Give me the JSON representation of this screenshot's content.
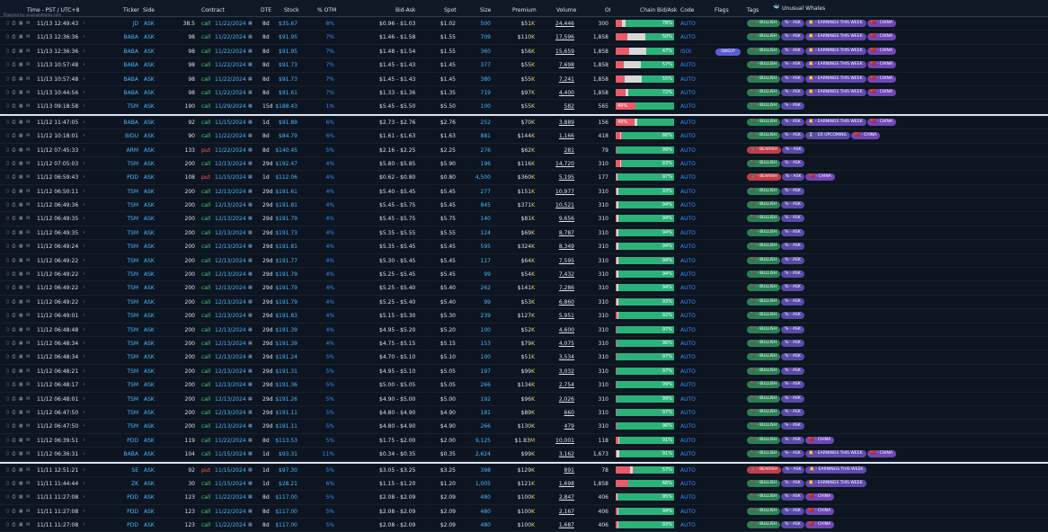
{
  "header": {
    "time": "Time - PST / UTC+8",
    "ticker": "Ticker",
    "side": "Side",
    "contract": "Contract",
    "dte": "DTE",
    "stock": "Stock",
    "otm": "% OTM",
    "bid_ask": "Bid-Ask",
    "spot": "Spot",
    "size": "Size",
    "premium": "Premium",
    "volume": "Volume",
    "oi": "OI",
    "chain": "Chain Bid/Ask",
    "code": "Code",
    "flags": "Flags",
    "tags": "Tags",
    "whales": "Unusual Whales",
    "brand": "Powered by unusualwhales.com"
  },
  "colors": {
    "bg": "#0d1520",
    "ticker": "#49b8ff",
    "call": "#3fd07f",
    "put": "#ff5a5a",
    "bid": "#e85b6a",
    "ask": "#2ab27b"
  },
  "rows": [
    {
      "time": "11/13 12:49:43",
      "ticker": "JD",
      "side": "ASK",
      "strike": "38.5",
      "type": "call",
      "exp": "11/22/2024",
      "dte": "8d",
      "stock": "$35.67",
      "otm": "8%",
      "bidask": "$0.96 - $1.03",
      "spot": "$1.02",
      "size": "500",
      "prem": "$51K",
      "vol": "24,446",
      "oi": "300",
      "bid": 11,
      "mid": 6,
      "pct": "78%",
      "code": "AUTO",
      "tags": [
        "bull",
        "ask",
        "earn",
        "china"
      ]
    },
    {
      "time": "11/13 12:36:36",
      "ticker": "BABA",
      "side": "ASK",
      "strike": "98",
      "type": "call",
      "exp": "11/22/2024",
      "dte": "8d",
      "stock": "$91.95",
      "otm": "7%",
      "bidask": "$1.46 - $1.58",
      "spot": "$1.55",
      "size": "709",
      "prem": "$110K",
      "vol": "17,596",
      "oi": "1,858",
      "bid": 20,
      "mid": 30,
      "pct": "50%",
      "code": "AUTO",
      "tags": [
        "bull",
        "ask",
        "earn",
        "china"
      ]
    },
    {
      "time": "11/13 12:36:36",
      "ticker": "BABA",
      "side": "ASK",
      "strike": "98",
      "type": "call",
      "exp": "11/22/2024",
      "dte": "8d",
      "stock": "$91.95",
      "otm": "7%",
      "bidask": "$1.48 - $1.54",
      "spot": "$1.55",
      "size": "360",
      "prem": "$56K",
      "vol": "15,659",
      "oi": "1,858",
      "bid": 23,
      "mid": 30,
      "pct": "47%",
      "code": "ISOI",
      "flag": "SWEEP",
      "tags": [
        "bull",
        "ask",
        "earn",
        "china"
      ]
    },
    {
      "time": "11/13 10:57:48",
      "ticker": "BABA",
      "side": "ASK",
      "strike": "98",
      "type": "call",
      "exp": "11/22/2024",
      "dte": "8d",
      "stock": "$91.73",
      "otm": "7%",
      "bidask": "$1.45 - $1.43",
      "spot": "$1.45",
      "size": "377",
      "prem": "$55K",
      "vol": "7,698",
      "oi": "1,858",
      "bid": 14,
      "mid": 29,
      "pct": "57%",
      "code": "AUTO",
      "tags": [
        "bull",
        "ask",
        "earn",
        "china"
      ]
    },
    {
      "time": "11/13 10:57:48",
      "ticker": "BABA",
      "side": "ASK",
      "strike": "98",
      "type": "call",
      "exp": "11/22/2024",
      "dte": "8d",
      "stock": "$91.73",
      "otm": "7%",
      "bidask": "$1.45 - $1.43",
      "spot": "$1.45",
      "size": "380",
      "prem": "$55K",
      "vol": "7,241",
      "oi": "1,858",
      "bid": 15,
      "mid": 29,
      "pct": "55%",
      "code": "AUTO",
      "tags": [
        "bull",
        "ask",
        "earn",
        "china"
      ]
    },
    {
      "time": "11/13 10:44:56",
      "ticker": "BABA",
      "side": "ASK",
      "strike": "98",
      "type": "call",
      "exp": "11/22/2024",
      "dte": "8d",
      "stock": "$91.61",
      "otm": "7%",
      "bidask": "$1.33 - $1.36",
      "spot": "$1.35",
      "size": "719",
      "prem": "$97K",
      "vol": "4,400",
      "oi": "1,858",
      "bid": 17,
      "mid": 4,
      "pct": "72%",
      "code": "AUTO",
      "tags": [
        "bull",
        "ask",
        "earn",
        "china"
      ]
    },
    {
      "time": "11/13 09:18:58",
      "ticker": "TSM",
      "side": "ASK",
      "strike": "190",
      "type": "call",
      "exp": "11/29/2024",
      "dte": "15d",
      "stock": "$188.43",
      "otm": "1%",
      "bidask": "$5.45 - $5.50",
      "spot": "$5.50",
      "size": "100",
      "prem": "$55K",
      "vol": "582",
      "oi": "565",
      "bid": 34,
      "mid": 0,
      "pct": "49%",
      "pctLeft": true,
      "code": "AUTO",
      "tags": [
        "bull",
        "ask"
      ]
    },
    {
      "time": "11/12 11:47:05",
      "ticker": "BABA",
      "side": "ASK",
      "strike": "92",
      "type": "call",
      "exp": "11/15/2024",
      "dte": "1d",
      "stock": "$91.89",
      "otm": "6%",
      "bidask": "$2.73 - $2.76",
      "spot": "$2.76",
      "size": "252",
      "prem": "$70K",
      "vol": "3,889",
      "oi": "156",
      "bid": 32,
      "mid": 5,
      "pct": "49%",
      "pctLeft": true,
      "code": "AUTO",
      "sep": true,
      "tags": [
        "bull",
        "ask",
        "earn",
        "china"
      ]
    },
    {
      "time": "11/12 10:18:01",
      "ticker": "BIDU",
      "side": "ASK",
      "strike": "90",
      "type": "call",
      "exp": "11/22/2024",
      "dte": "8d",
      "stock": "$84.79",
      "otm": "6%",
      "bidask": "$1.61 - $1.63",
      "spot": "$1.63",
      "size": "881",
      "prem": "$144K",
      "vol": "1,166",
      "oi": "418",
      "bid": 7,
      "mid": 3,
      "pct": "86%",
      "code": "AUTO",
      "tags": [
        "bull",
        "ask",
        "er",
        "china"
      ]
    },
    {
      "time": "11/12 07:45:33",
      "ticker": "ARM",
      "side": "ASK",
      "strike": "133",
      "type": "put",
      "exp": "11/22/2024",
      "dte": "8d",
      "stock": "$140.45",
      "otm": "5%",
      "bidask": "$2.16 - $2.25",
      "spot": "$2.25",
      "size": "276",
      "prem": "$62K",
      "vol": "281",
      "oi": "79",
      "bid": 1,
      "mid": 0,
      "pct": "99%",
      "code": "AUTO",
      "tags": [
        "bear",
        "ask"
      ]
    },
    {
      "time": "11/12 07:05:03",
      "ticker": "TSM",
      "side": "ASK",
      "strike": "200",
      "type": "call",
      "exp": "12/13/2024",
      "dte": "29d",
      "stock": "$192.47",
      "otm": "4%",
      "bidask": "$5.80 - $5.85",
      "spot": "$5.90",
      "size": "196",
      "prem": "$116K",
      "vol": "14,720",
      "oi": "310",
      "bid": 7,
      "mid": 3,
      "pct": "83%",
      "code": "AUTO",
      "tags": [
        "bull",
        "ask"
      ]
    },
    {
      "time": "11/12 06:59:43",
      "ticker": "PDD",
      "side": "ASK",
      "strike": "108",
      "type": "put",
      "exp": "11/15/2024",
      "dte": "1d",
      "stock": "$112.06",
      "otm": "4%",
      "bidask": "$0.62 - $0.80",
      "spot": "$0.80",
      "size": "4,500",
      "prem": "$360K",
      "vol": "5,195",
      "oi": "177",
      "bid": 2,
      "mid": 1,
      "pct": "97%",
      "code": "AUTO",
      "tags": [
        "bear",
        "ask",
        "china"
      ]
    },
    {
      "time": "11/12 06:50:11",
      "ticker": "TSM",
      "side": "ASK",
      "strike": "200",
      "type": "call",
      "exp": "12/13/2024",
      "dte": "29d",
      "stock": "$191.61",
      "otm": "4%",
      "bidask": "$5.40 - $5.45",
      "spot": "$5.45",
      "size": "277",
      "prem": "$151K",
      "vol": "10,977",
      "oi": "310",
      "bid": 2,
      "mid": 2,
      "pct": "93%",
      "code": "AUTO",
      "tags": [
        "bull",
        "ask"
      ]
    },
    {
      "time": "11/12 06:49:36",
      "ticker": "TSM",
      "side": "ASK",
      "strike": "200",
      "type": "call",
      "exp": "12/13/2024",
      "dte": "29d",
      "stock": "$191.81",
      "otm": "4%",
      "bidask": "$5.45 - $5.75",
      "spot": "$5.45",
      "size": "845",
      "prem": "$371K",
      "vol": "10,521",
      "oi": "310",
      "bid": 2,
      "mid": 2,
      "pct": "94%",
      "code": "AUTO",
      "tags": [
        "bull",
        "ask"
      ]
    },
    {
      "time": "11/12 06:49:35",
      "ticker": "TSM",
      "side": "ASK",
      "strike": "200",
      "type": "call",
      "exp": "12/13/2024",
      "dte": "29d",
      "stock": "$191.79",
      "otm": "4%",
      "bidask": "$5.45 - $5.75",
      "spot": "$5.75",
      "size": "140",
      "prem": "$81K",
      "vol": "9,656",
      "oi": "310",
      "bid": 2,
      "mid": 2,
      "pct": "94%",
      "code": "AUTO",
      "tags": [
        "bull",
        "ask"
      ]
    },
    {
      "time": "11/12 06:49:35",
      "ticker": "TSM",
      "side": "ASK",
      "strike": "200",
      "type": "call",
      "exp": "12/13/2024",
      "dte": "29d",
      "stock": "$191.73",
      "otm": "4%",
      "bidask": "$5.35 - $5.55",
      "spot": "$5.55",
      "size": "124",
      "prem": "$69K",
      "vol": "8,787",
      "oi": "310",
      "bid": 2,
      "mid": 2,
      "pct": "94%",
      "code": "AUTO",
      "tags": [
        "bull",
        "ask"
      ]
    },
    {
      "time": "11/12 06:49:24",
      "ticker": "TSM",
      "side": "ASK",
      "strike": "200",
      "type": "call",
      "exp": "12/13/2024",
      "dte": "29d",
      "stock": "$191.81",
      "otm": "4%",
      "bidask": "$5.35 - $5.45",
      "spot": "$5.45",
      "size": "595",
      "prem": "$324K",
      "vol": "8,349",
      "oi": "310",
      "bid": 2,
      "mid": 2,
      "pct": "94%",
      "code": "AUTO",
      "tags": [
        "bull",
        "ask"
      ]
    },
    {
      "time": "11/12 06:49:22",
      "ticker": "TSM",
      "side": "ASK",
      "strike": "200",
      "type": "call",
      "exp": "12/13/2024",
      "dte": "29d",
      "stock": "$191.77",
      "otm": "4%",
      "bidask": "$5.30 - $5.45",
      "spot": "$5.45",
      "size": "117",
      "prem": "$64K",
      "vol": "7,595",
      "oi": "310",
      "bid": 2,
      "mid": 2,
      "pct": "94%",
      "code": "AUTO",
      "tags": [
        "bull",
        "ask"
      ]
    },
    {
      "time": "11/12 06:49:22",
      "ticker": "TSM",
      "side": "ASK",
      "strike": "200",
      "type": "call",
      "exp": "12/13/2024",
      "dte": "29d",
      "stock": "$191.79",
      "otm": "4%",
      "bidask": "$5.25 - $5.45",
      "spot": "$5.45",
      "size": "99",
      "prem": "$54K",
      "vol": "7,432",
      "oi": "310",
      "bid": 2,
      "mid": 2,
      "pct": "94%",
      "code": "AUTO",
      "tags": [
        "bull",
        "ask"
      ]
    },
    {
      "time": "11/12 06:49:22",
      "ticker": "TSM",
      "side": "ASK",
      "strike": "200",
      "type": "call",
      "exp": "12/13/2024",
      "dte": "29d",
      "stock": "$191.79",
      "otm": "4%",
      "bidask": "$5.25 - $5.40",
      "spot": "$5.40",
      "size": "262",
      "prem": "$141K",
      "vol": "7,286",
      "oi": "310",
      "bid": 2,
      "mid": 2,
      "pct": "94%",
      "code": "AUTO",
      "tags": [
        "bull",
        "ask"
      ]
    },
    {
      "time": "11/12 06:49:22",
      "ticker": "TSM",
      "side": "ASK",
      "strike": "200",
      "type": "call",
      "exp": "12/13/2024",
      "dte": "29d",
      "stock": "$191.79",
      "otm": "4%",
      "bidask": "$5.25 - $5.40",
      "spot": "$5.40",
      "size": "99",
      "prem": "$53K",
      "vol": "6,860",
      "oi": "310",
      "bid": 2,
      "mid": 2,
      "pct": "93%",
      "code": "AUTO",
      "tags": [
        "bull",
        "ask"
      ]
    },
    {
      "time": "11/12 06:49:01",
      "ticker": "TSM",
      "side": "ASK",
      "strike": "200",
      "type": "call",
      "exp": "12/13/2024",
      "dte": "29d",
      "stock": "$191.83",
      "otm": "4%",
      "bidask": "$5.15 - $5.30",
      "spot": "$5.30",
      "size": "239",
      "prem": "$127K",
      "vol": "5,951",
      "oi": "310",
      "bid": 3,
      "mid": 2,
      "pct": "92%",
      "code": "AUTO",
      "tags": [
        "bull",
        "ask"
      ]
    },
    {
      "time": "11/12 06:48:48",
      "ticker": "TSM",
      "side": "ASK",
      "strike": "200",
      "type": "call",
      "exp": "12/13/2024",
      "dte": "29d",
      "stock": "$191.39",
      "otm": "4%",
      "bidask": "$4.95 - $5.20",
      "spot": "$5.20",
      "size": "100",
      "prem": "$52K",
      "vol": "4,600",
      "oi": "310",
      "bid": 1,
      "mid": 1,
      "pct": "97%",
      "code": "AUTO",
      "tags": [
        "bull",
        "ask"
      ]
    },
    {
      "time": "11/12 06:48:34",
      "ticker": "TSM",
      "side": "ASK",
      "strike": "200",
      "type": "call",
      "exp": "12/13/2024",
      "dte": "29d",
      "stock": "$191.39",
      "otm": "4%",
      "bidask": "$4.75 - $5.15",
      "spot": "$5.15",
      "size": "153",
      "prem": "$79K",
      "vol": "4,075",
      "oi": "310",
      "bid": 1,
      "mid": 1,
      "pct": "96%",
      "code": "AUTO",
      "tags": [
        "bull",
        "ask"
      ]
    },
    {
      "time": "11/12 06:48:34",
      "ticker": "TSM",
      "side": "ASK",
      "strike": "200",
      "type": "call",
      "exp": "12/13/2024",
      "dte": "29d",
      "stock": "$191.24",
      "otm": "5%",
      "bidask": "$4.70 - $5.10",
      "spot": "$5.10",
      "size": "100",
      "prem": "$51K",
      "vol": "3,534",
      "oi": "310",
      "bid": 1,
      "mid": 1,
      "pct": "97%",
      "code": "AUTO",
      "tags": [
        "bull",
        "ask"
      ]
    },
    {
      "time": "11/12 06:48:21",
      "ticker": "TSM",
      "side": "ASK",
      "strike": "200",
      "type": "call",
      "exp": "12/13/2024",
      "dte": "29d",
      "stock": "$191.31",
      "otm": "5%",
      "bidask": "$4.95 - $5.10",
      "spot": "$5.05",
      "size": "197",
      "prem": "$99K",
      "vol": "3,032",
      "oi": "310",
      "bid": 1,
      "mid": 1,
      "pct": "97%",
      "code": "AUTO",
      "tags": [
        "bull",
        "ask"
      ]
    },
    {
      "time": "11/12 06:48:17",
      "ticker": "TSM",
      "side": "ASK",
      "strike": "200",
      "type": "call",
      "exp": "12/13/2024",
      "dte": "29d",
      "stock": "$191.36",
      "otm": "5%",
      "bidask": "$5.00 - $5.05",
      "spot": "$5.05",
      "size": "266",
      "prem": "$134K",
      "vol": "2,754",
      "oi": "310",
      "bid": 1,
      "mid": 0,
      "pct": "99%",
      "code": "AUTO",
      "tags": [
        "bull",
        "ask"
      ]
    },
    {
      "time": "11/12 06:48:01",
      "ticker": "TSM",
      "side": "ASK",
      "strike": "200",
      "type": "call",
      "exp": "12/13/2024",
      "dte": "29d",
      "stock": "$191.26",
      "otm": "5%",
      "bidask": "$4.90 - $5.00",
      "spot": "$5.00",
      "size": "192",
      "prem": "$96K",
      "vol": "2,026",
      "oi": "310",
      "bid": 1,
      "mid": 0,
      "pct": "99%",
      "code": "AUTO",
      "tags": [
        "bull",
        "ask"
      ]
    },
    {
      "time": "11/12 06:47:50",
      "ticker": "TSM",
      "side": "ASK",
      "strike": "200",
      "type": "call",
      "exp": "12/13/2024",
      "dte": "29d",
      "stock": "$191.11",
      "otm": "5%",
      "bidask": "$4.80 - $4.90",
      "spot": "$4.90",
      "size": "181",
      "prem": "$89K",
      "vol": "660",
      "oi": "310",
      "bid": 1,
      "mid": 1,
      "pct": "97%",
      "code": "AUTO",
      "tags": [
        "bull",
        "ask"
      ]
    },
    {
      "time": "11/12 06:47:50",
      "ticker": "TSM",
      "side": "ASK",
      "strike": "200",
      "type": "call",
      "exp": "12/13/2024",
      "dte": "29d",
      "stock": "$191.11",
      "otm": "5%",
      "bidask": "$4.80 - $4.90",
      "spot": "$4.90",
      "size": "266",
      "prem": "$130K",
      "vol": "479",
      "oi": "310",
      "bid": 1,
      "mid": 1,
      "pct": "96%",
      "code": "AUTO",
      "tags": [
        "bull",
        "ask"
      ]
    },
    {
      "time": "11/12 06:39:51",
      "ticker": "PDD",
      "side": "ASK",
      "strike": "119",
      "type": "call",
      "exp": "11/22/2024",
      "dte": "8d",
      "stock": "$113.53",
      "otm": "5%",
      "bidask": "$1.75 - $2.00",
      "spot": "$2.00",
      "size": "9,125",
      "prem": "$1.83M",
      "vol": "10,001",
      "oi": "118",
      "bid": 4,
      "mid": 2,
      "pct": "91%",
      "code": "AUTO",
      "tags": [
        "bull",
        "ask",
        "china"
      ]
    },
    {
      "time": "11/12 06:36:31",
      "ticker": "BABA",
      "side": "ASK",
      "strike": "104",
      "type": "call",
      "exp": "11/15/2024",
      "dte": "1d",
      "stock": "$93.31",
      "otm": "11%",
      "bidask": "$0.34 - $0.35",
      "spot": "$0.35",
      "size": "2,624",
      "prem": "$99K",
      "vol": "3,162",
      "oi": "1,673",
      "bid": 2,
      "mid": 4,
      "pct": "91%",
      "code": "AUTO",
      "tags": [
        "bull",
        "ask",
        "earn",
        "china"
      ]
    },
    {
      "time": "11/11 12:51:21",
      "ticker": "SE",
      "side": "ASK",
      "strike": "92",
      "type": "put",
      "exp": "11/15/2024",
      "dte": "1d",
      "stock": "$97.30",
      "otm": "5%",
      "bidask": "$3.05 - $3.25",
      "spot": "$3.25",
      "size": "398",
      "prem": "$129K",
      "vol": "891",
      "oi": "78",
      "bid": 24,
      "mid": 6,
      "pct": "57%",
      "code": "AUTO",
      "sep": true,
      "tags": [
        "bear",
        "ask",
        "earn"
      ]
    },
    {
      "time": "11/11 11:44:44",
      "ticker": "ZK",
      "side": "ASK",
      "strike": "30",
      "type": "call",
      "exp": "11/15/2024",
      "dte": "1d",
      "stock": "$28.21",
      "otm": "6%",
      "bidask": "$1.15 - $1.20",
      "spot": "$1.20",
      "size": "1,005",
      "prem": "$121K",
      "vol": "1,698",
      "oi": "1,858",
      "bid": 22,
      "mid": 0,
      "pct": "66%",
      "code": "AUTO",
      "tags": [
        "bull",
        "ask",
        "earn"
      ]
    },
    {
      "time": "11/11 11:27:08",
      "ticker": "PDD",
      "side": "ASK",
      "strike": "123",
      "type": "call",
      "exp": "11/22/2024",
      "dte": "8d",
      "stock": "$117.00",
      "otm": "5%",
      "bidask": "$2.08 - $2.09",
      "spot": "$2.09",
      "size": "480",
      "prem": "$100K",
      "vol": "2,847",
      "oi": "406",
      "bid": 2,
      "mid": 1,
      "pct": "95%",
      "code": "AUTO",
      "tags": [
        "bull",
        "ask",
        "china"
      ]
    },
    {
      "time": "11/11 11:27:08",
      "ticker": "PDD",
      "side": "ASK",
      "strike": "123",
      "type": "call",
      "exp": "11/22/2024",
      "dte": "8d",
      "stock": "$117.00",
      "otm": "5%",
      "bidask": "$2.08 - $2.09",
      "spot": "$2.09",
      "size": "480",
      "prem": "$100K",
      "vol": "2,167",
      "oi": "406",
      "bid": 3,
      "mid": 1,
      "pct": "94%",
      "code": "AUTO",
      "tags": [
        "bull",
        "ask",
        "china"
      ]
    },
    {
      "time": "11/11 11:27:08",
      "ticker": "PDD",
      "side": "ASK",
      "strike": "123",
      "type": "call",
      "exp": "11/22/2024",
      "dte": "8d",
      "stock": "$117.00",
      "otm": "5%",
      "bidask": "$2.08 - $2.09",
      "spot": "$2.09",
      "size": "480",
      "prem": "$100K",
      "vol": "1,687",
      "oi": "406",
      "bid": 3,
      "mid": 1,
      "pct": "93%",
      "code": "AUTO",
      "tags": [
        "bull",
        "ask",
        "china"
      ]
    }
  ],
  "tag_labels": {
    "bull": "BULLISH",
    "bear": "BEARISH",
    "ask": "ASK",
    "earn": "EARNINGS THIS WEEK",
    "china": "CHINA",
    "er": "ER UPCOMING"
  }
}
